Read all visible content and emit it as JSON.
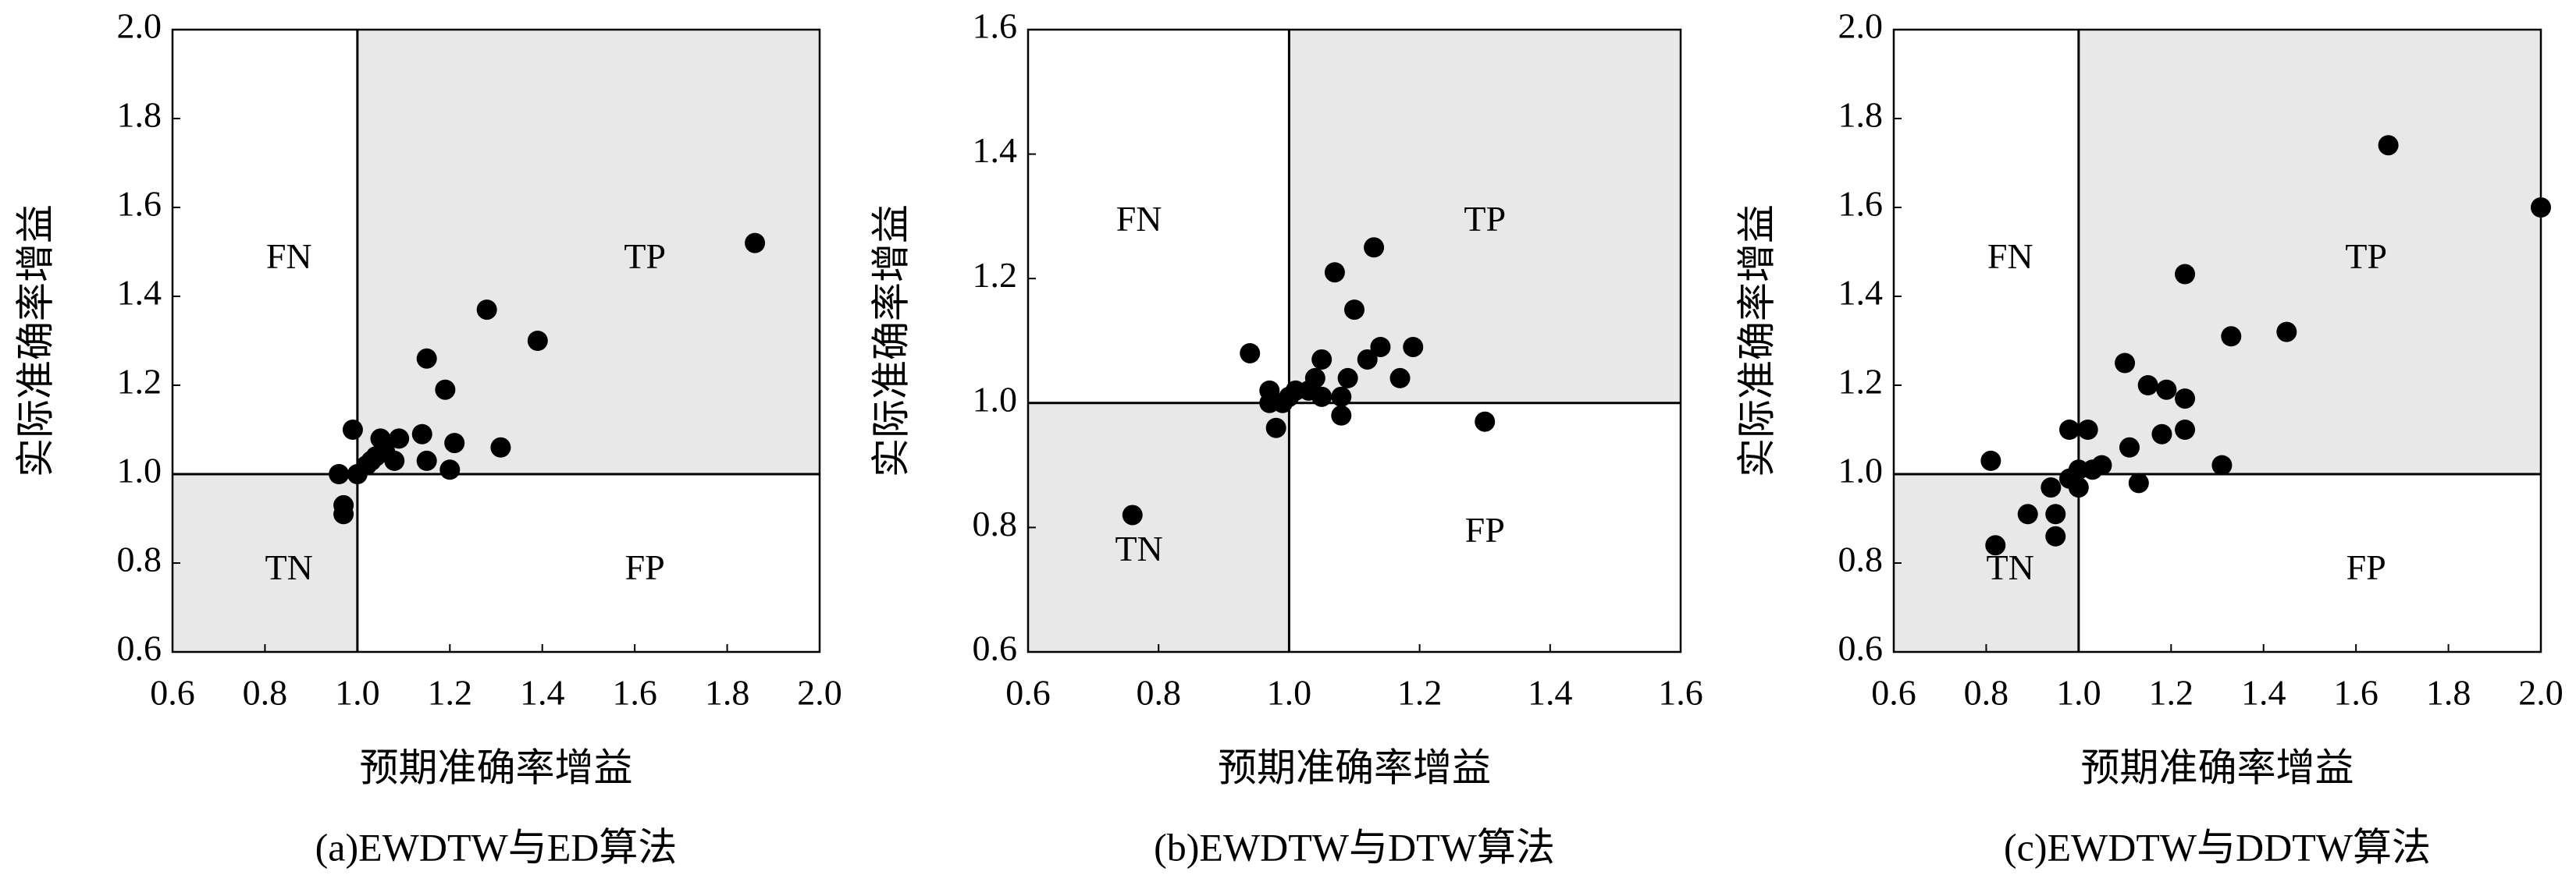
{
  "chart_data": [
    {
      "type": "scatter",
      "caption": "(a)EWDTW与ED算法",
      "xlabel": "预期准确率增益",
      "ylabel": "实际准确率增益",
      "x": [
        1.86,
        1.28,
        1.39,
        1.15,
        1.19,
        0.99,
        1.31,
        1.14,
        1.21,
        1.09,
        1.05,
        1.2,
        1.15,
        1.08,
        1.04,
        1.02,
        1.0,
        0.96,
        0.97,
        0.97,
        1.06,
        1.03
      ],
      "y": [
        1.52,
        1.37,
        1.3,
        1.26,
        1.19,
        1.1,
        1.06,
        1.09,
        1.07,
        1.08,
        1.08,
        1.01,
        1.03,
        1.03,
        1.04,
        1.02,
        1.0,
        1.0,
        0.93,
        0.91,
        1.05,
        1.03
      ],
      "xlim": [
        0.6,
        2.0
      ],
      "ylim": [
        0.6,
        2.0
      ],
      "xticks": [
        {
          "value": 0.6,
          "label": "0.6"
        },
        {
          "value": 0.8,
          "label": "0.8"
        },
        {
          "value": 1.0,
          "label": "1.0"
        },
        {
          "value": 1.2,
          "label": "1.2"
        },
        {
          "value": 1.4,
          "label": "1.4"
        },
        {
          "value": 1.6,
          "label": "1.6"
        },
        {
          "value": 1.8,
          "label": "1.8"
        },
        {
          "value": 2.0,
          "label": "2.0"
        }
      ],
      "yticks": [
        {
          "value": 0.6,
          "label": "0.6"
        },
        {
          "value": 0.8,
          "label": "0.8"
        },
        {
          "value": 1.0,
          "label": "1.0"
        },
        {
          "value": 1.2,
          "label": "1.2"
        },
        {
          "value": 1.4,
          "label": "1.4"
        },
        {
          "value": 1.6,
          "label": "1.6"
        },
        {
          "value": 1.8,
          "label": "1.8"
        },
        {
          "value": 2.0,
          "label": "2.0"
        }
      ],
      "vline": 1.0,
      "hline": 1.0,
      "annotations": [
        "FN",
        "TP",
        "TN",
        "FP"
      ],
      "color": "#000000",
      "shade_color": "#e8e8e8"
    },
    {
      "type": "scatter",
      "caption": "(b)EWDTW与DTW算法",
      "xlabel": "预期准确率增益",
      "ylabel": "实际准确率增益",
      "x": [
        0.76,
        1.3,
        0.94,
        1.13,
        1.07,
        1.1,
        1.14,
        1.19,
        1.12,
        1.05,
        1.09,
        1.17,
        0.97,
        1.01,
        1.04,
        1.0,
        0.97,
        0.99,
        1.05,
        1.08,
        1.08,
        0.98,
        1.03
      ],
      "y": [
        0.82,
        0.97,
        1.08,
        1.25,
        1.21,
        1.15,
        1.09,
        1.09,
        1.07,
        1.07,
        1.04,
        1.04,
        1.02,
        1.02,
        1.04,
        1.01,
        1.0,
        1.0,
        1.01,
        1.01,
        0.98,
        0.96,
        1.02
      ],
      "xlim": [
        0.6,
        1.6
      ],
      "ylim": [
        0.6,
        1.6
      ],
      "xticks": [
        {
          "value": 0.6,
          "label": "0.6"
        },
        {
          "value": 0.8,
          "label": "0.8"
        },
        {
          "value": 1.0,
          "label": "1.0"
        },
        {
          "value": 1.2,
          "label": "1.2"
        },
        {
          "value": 1.4,
          "label": "1.4"
        },
        {
          "value": 1.6,
          "label": "1.6"
        }
      ],
      "yticks": [
        {
          "value": 0.6,
          "label": "0.6"
        },
        {
          "value": 0.8,
          "label": "0.8"
        },
        {
          "value": 1.0,
          "label": "1.0"
        },
        {
          "value": 1.2,
          "label": "1.2"
        },
        {
          "value": 1.4,
          "label": "1.4"
        },
        {
          "value": 1.6,
          "label": "1.6"
        }
      ],
      "vline": 1.0,
      "hline": 1.0,
      "annotations": [
        "FN",
        "TP",
        "TN",
        "FP"
      ],
      "color": "#000000",
      "shade_color": "#e8e8e8"
    },
    {
      "type": "scatter",
      "caption": "(c)EWDTW与DDTW算法",
      "xlabel": "预期准确率增益",
      "ylabel": "实际准确率增益",
      "x": [
        1.67,
        2.0,
        1.23,
        1.45,
        1.33,
        1.1,
        1.15,
        1.19,
        1.23,
        1.23,
        1.18,
        1.11,
        0.98,
        1.02,
        1.31,
        1.13,
        0.81,
        1.0,
        0.98,
        1.03,
        1.05,
        1.0,
        0.94,
        0.89,
        0.95,
        0.95,
        0.82
      ],
      "y": [
        1.74,
        1.6,
        1.45,
        1.32,
        1.31,
        1.25,
        1.2,
        1.19,
        1.17,
        1.1,
        1.09,
        1.06,
        1.1,
        1.1,
        1.02,
        0.98,
        1.03,
        1.01,
        0.99,
        1.01,
        1.02,
        0.97,
        0.97,
        0.91,
        0.91,
        0.86,
        0.84
      ],
      "xlim": [
        0.6,
        2.0
      ],
      "ylim": [
        0.6,
        2.0
      ],
      "xticks": [
        {
          "value": 0.6,
          "label": "0.6"
        },
        {
          "value": 0.8,
          "label": "0.8"
        },
        {
          "value": 1.0,
          "label": "1.0"
        },
        {
          "value": 1.2,
          "label": "1.2"
        },
        {
          "value": 1.4,
          "label": "1.4"
        },
        {
          "value": 1.6,
          "label": "1.6"
        },
        {
          "value": 1.8,
          "label": "1.8"
        },
        {
          "value": 2.0,
          "label": "2.0"
        }
      ],
      "yticks": [
        {
          "value": 0.6,
          "label": "0.6"
        },
        {
          "value": 0.8,
          "label": "0.8"
        },
        {
          "value": 1.0,
          "label": "1.0"
        },
        {
          "value": 1.2,
          "label": "1.2"
        },
        {
          "value": 1.4,
          "label": "1.4"
        },
        {
          "value": 1.6,
          "label": "1.6"
        },
        {
          "value": 1.8,
          "label": "1.8"
        },
        {
          "value": 2.0,
          "label": "2.0"
        }
      ],
      "vline": 1.0,
      "hline": 1.0,
      "annotations": [
        "FN",
        "TP",
        "TN",
        "FP"
      ],
      "color": "#000000",
      "shade_color": "#e8e8e8"
    }
  ]
}
